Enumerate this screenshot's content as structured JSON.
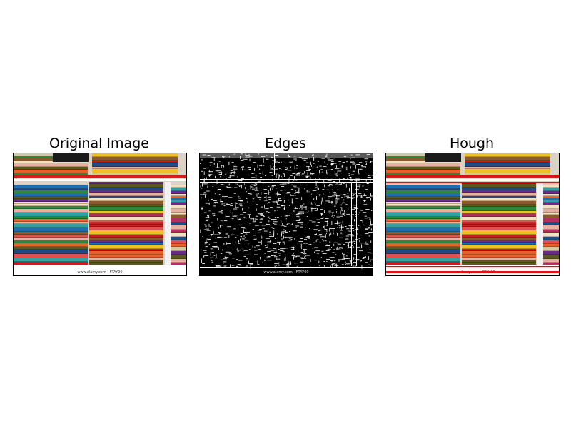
{
  "figure": {
    "panels": [
      {
        "title": "Original Image",
        "watermark": "www.alamy.com - FTAY00"
      },
      {
        "title": "Edges",
        "watermark": "www.alamy.com - FTAY00"
      },
      {
        "title": "Hough",
        "watermark": "www.alamy.com - FTAY00"
      }
    ]
  },
  "colors": {
    "hough_line": "#e01010",
    "edge_background": "#000000",
    "edge_stroke": "#ffffff"
  }
}
